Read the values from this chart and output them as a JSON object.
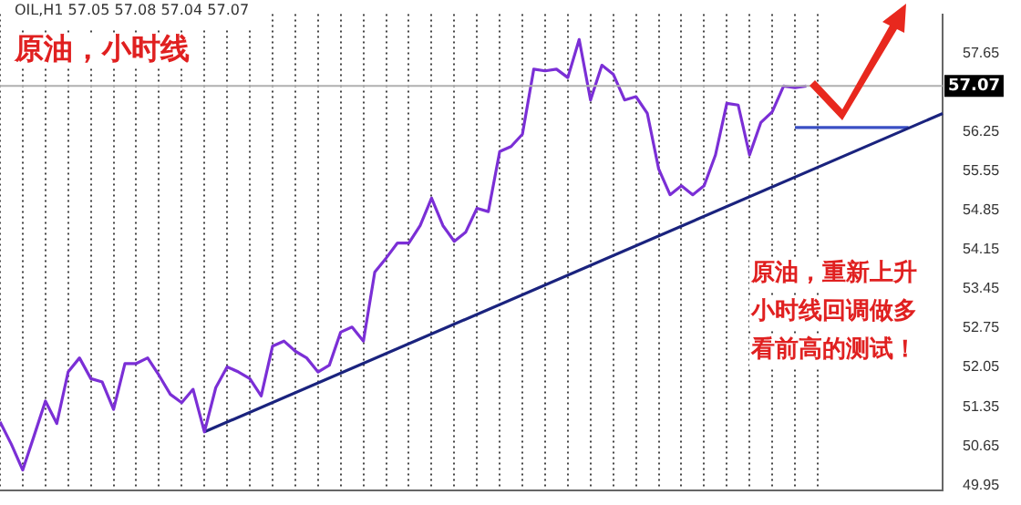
{
  "chart_data": {
    "type": "line",
    "title": "原油，小时线",
    "annotations": [
      "OIL,H1 57.05 57.08 57.04 57.07",
      "原油，重新上升小时线回调做多看前高的测试！"
    ],
    "categories": [
      null,
      null,
      null,
      null,
      null,
      null,
      null,
      null,
      null,
      null,
      null,
      null,
      null,
      null,
      null,
      null,
      null,
      null,
      null,
      null,
      null,
      null,
      null,
      null,
      null,
      null,
      null,
      null,
      null,
      null,
      null,
      null,
      null,
      null,
      null,
      null,
      null,
      null,
      null,
      null,
      null,
      null,
      null,
      null,
      null,
      null,
      null,
      null,
      null,
      null,
      null,
      null,
      null,
      null,
      null,
      null,
      null,
      null,
      null,
      null,
      null,
      null,
      null,
      null,
      null,
      null,
      null,
      null,
      null,
      null,
      null,
      null,
      null,
      null,
      null,
      null,
      null,
      null,
      null,
      null,
      null,
      null,
      null,
      null
    ],
    "ylim": [
      49.85,
      58.35
    ],
    "yticks": [
      49.95,
      50.65,
      51.35,
      52.05,
      52.75,
      53.45,
      54.15,
      54.85,
      55.55,
      56.25,
      57.65
    ],
    "tick_labels": "y",
    "grid": "x",
    "legend": false,
    "marker": "none",
    "line_style": "solid",
    "ref_lines": [
      {
        "axis": "y",
        "value": 57.07,
        "label": "57.07",
        "color": "#b0b0b0"
      }
    ],
    "series": [
      {
        "color": "#7b2fd6",
        "values": [
          51.08,
          50.68,
          50.22,
          50.83,
          51.45,
          51.05,
          51.97,
          52.22,
          51.85,
          51.79,
          51.3,
          52.12,
          52.12,
          52.22,
          51.91,
          51.57,
          51.42,
          51.66,
          50.9,
          51.69,
          52.06,
          51.97,
          51.85,
          51.54,
          52.43,
          52.52,
          52.34,
          52.22,
          51.97,
          52.09,
          52.68,
          52.77,
          52.52,
          53.75,
          54.0,
          54.27,
          54.27,
          54.58,
          55.07,
          54.58,
          54.3,
          54.46,
          54.89,
          54.83,
          55.9,
          55.99,
          56.21,
          57.37,
          57.34,
          57.37,
          57.22,
          57.9,
          56.82,
          57.44,
          57.28,
          56.82,
          56.88,
          56.58,
          55.59,
          55.13,
          55.29,
          55.13,
          55.29,
          55.84,
          56.76,
          56.73,
          55.84,
          56.42,
          56.61,
          57.07,
          57.04,
          57.07,
          null,
          null,
          null,
          null,
          null,
          null,
          null,
          null,
          null,
          null,
          null,
          null
        ]
      },
      {
        "color": "#1a237e",
        "values": [
          null,
          null,
          null,
          null,
          null,
          null,
          null,
          null,
          null,
          null,
          null,
          null,
          null,
          null,
          null,
          null,
          null,
          null,
          50.9,
          null,
          null,
          null,
          null,
          null,
          null,
          null,
          null,
          null,
          null,
          null,
          null,
          null,
          null,
          null,
          null,
          null,
          null,
          null,
          null,
          null,
          null,
          null,
          null,
          null,
          null,
          null,
          null,
          null,
          null,
          null,
          null,
          null,
          null,
          null,
          null,
          null,
          null,
          null,
          null,
          null,
          null,
          null,
          null,
          null,
          null,
          null,
          null,
          null,
          null,
          null,
          null,
          null,
          null,
          null,
          null,
          null,
          null,
          null,
          null,
          null,
          null,
          null,
          null,
          56.58
        ]
      },
      {
        "color": "#3a4fc4",
        "values": [
          null,
          null,
          null,
          null,
          null,
          null,
          null,
          null,
          null,
          null,
          null,
          null,
          null,
          null,
          null,
          null,
          null,
          null,
          null,
          null,
          null,
          null,
          null,
          null,
          null,
          null,
          null,
          null,
          null,
          null,
          null,
          null,
          null,
          null,
          null,
          null,
          null,
          null,
          null,
          null,
          null,
          null,
          null,
          null,
          null,
          null,
          null,
          null,
          null,
          null,
          null,
          null,
          null,
          null,
          null,
          null,
          null,
          null,
          null,
          null,
          null,
          null,
          null,
          null,
          null,
          null,
          null,
          null,
          null,
          null,
          56.33,
          null,
          null,
          null,
          null,
          null,
          null,
          null,
          null,
          null,
          56.33,
          null,
          null,
          null
        ]
      }
    ]
  }
}
